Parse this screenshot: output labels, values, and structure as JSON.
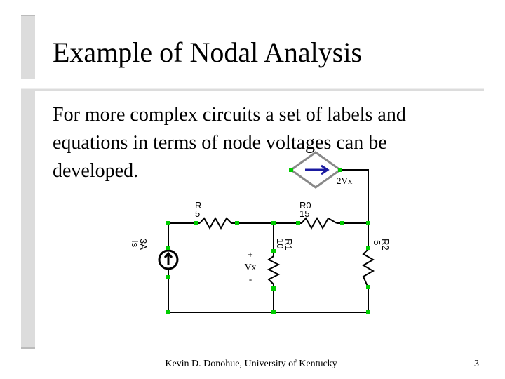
{
  "slide": {
    "title": "Example of Nodal Analysis",
    "body": [
      "For more complex circuits a set of labels and",
      "equations in terms of node voltages can be",
      "developed."
    ],
    "circuit": {
      "dependent_source": "2Vx",
      "r": {
        "name": "R",
        "value": "5"
      },
      "r0": {
        "name": "R0",
        "value": "15"
      },
      "r1": {
        "name": "R1",
        "value": "10"
      },
      "r2": {
        "name": "R2",
        "value": "5"
      },
      "source": {
        "value": "3A",
        "name": "Is"
      },
      "vx": {
        "plus": "+",
        "name": "Vx",
        "minus": "-"
      }
    },
    "footer": "Kevin D. Donohue, University of Kentucky",
    "page_number": "3"
  }
}
